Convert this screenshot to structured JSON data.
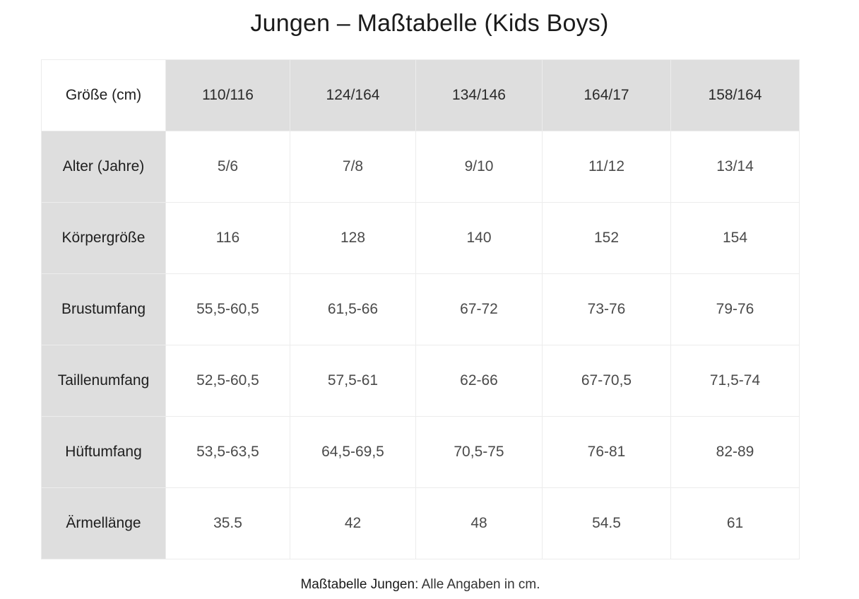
{
  "title": "Jungen – Maßtabelle (Kids Boys)",
  "table": {
    "corner": "Größe (cm)",
    "sizes": [
      "110/116",
      "124/164",
      "134/146",
      "164/17",
      "158/164"
    ],
    "rows": [
      {
        "label": "Alter (Jahre)",
        "values": [
          "5/6",
          "7/8",
          "9/10",
          "11/12",
          "13/14"
        ]
      },
      {
        "label": "Körpergröße",
        "values": [
          "116",
          "128",
          "140",
          "152",
          "154"
        ]
      },
      {
        "label": "Brustumfang",
        "values": [
          "55,5-60,5",
          "61,5-66",
          "67-72",
          "73-76",
          "79-76"
        ]
      },
      {
        "label": "Taillenumfang",
        "values": [
          "52,5-60,5",
          "57,5-61",
          "62-66",
          "67-70,5",
          "71,5-74"
        ]
      },
      {
        "label": "Hüftumfang",
        "values": [
          "53,5-63,5",
          "64,5-69,5",
          "70,5-75",
          "76-81",
          "82-89"
        ]
      },
      {
        "label": "Ärmellänge",
        "values": [
          "35.5",
          "42",
          "48",
          "54.5",
          "61"
        ]
      }
    ]
  },
  "footer": {
    "lead": "Maßtabelle Jungen",
    "text": ": Alle Angaben in cm."
  }
}
